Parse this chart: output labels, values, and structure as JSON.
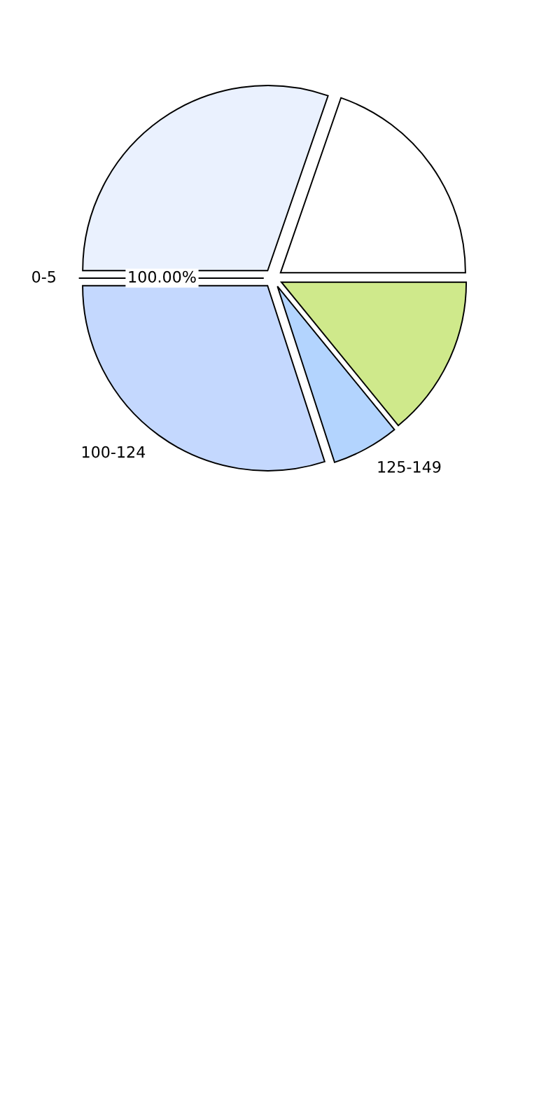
{
  "chart_data": {
    "type": "pie",
    "categories": [
      "0-5",
      "100-124",
      "125-149",
      null,
      null,
      null
    ],
    "values": [
      0,
      30.0,
      5.9,
      14.1,
      19.7,
      30.3
    ],
    "colors": [
      "#ffffff",
      "#c4d8fe",
      "#b3d4fe",
      "#cfe98b",
      "#ffffff",
      "#eaf1fe"
    ],
    "annotations": [
      "100.00%"
    ]
  }
}
